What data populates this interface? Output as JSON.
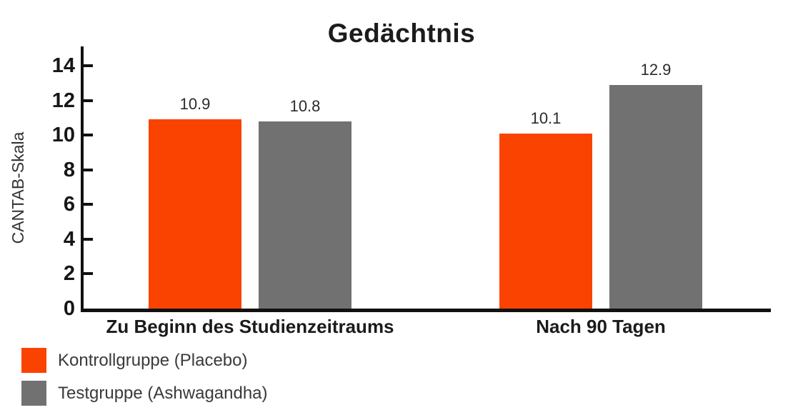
{
  "page": {
    "background": "#ffffff"
  },
  "chart_data": {
    "type": "bar",
    "title": "Gedächtnis",
    "ylabel": "CANTAB-Skala",
    "xlabel": "",
    "ylim": [
      0,
      14
    ],
    "yticks": [
      0,
      2,
      4,
      6,
      8,
      10,
      12,
      14
    ],
    "grid": false,
    "legend_position": "bottom-left",
    "axis_color": "#111111",
    "categories": [
      "Zu Beginn des Studienzeitraums",
      "Nach 90 Tagen"
    ],
    "series": [
      {
        "name": "Kontrollgruppe (Placebo)",
        "color": "#FA4300",
        "values": [
          10.9,
          10.1
        ]
      },
      {
        "name": "Testgruppe (Ashwagandha)",
        "color": "#717171",
        "values": [
          10.8,
          12.9
        ]
      }
    ],
    "value_labels": [
      "10.9",
      "10.8",
      "10.1",
      "12.9"
    ]
  }
}
